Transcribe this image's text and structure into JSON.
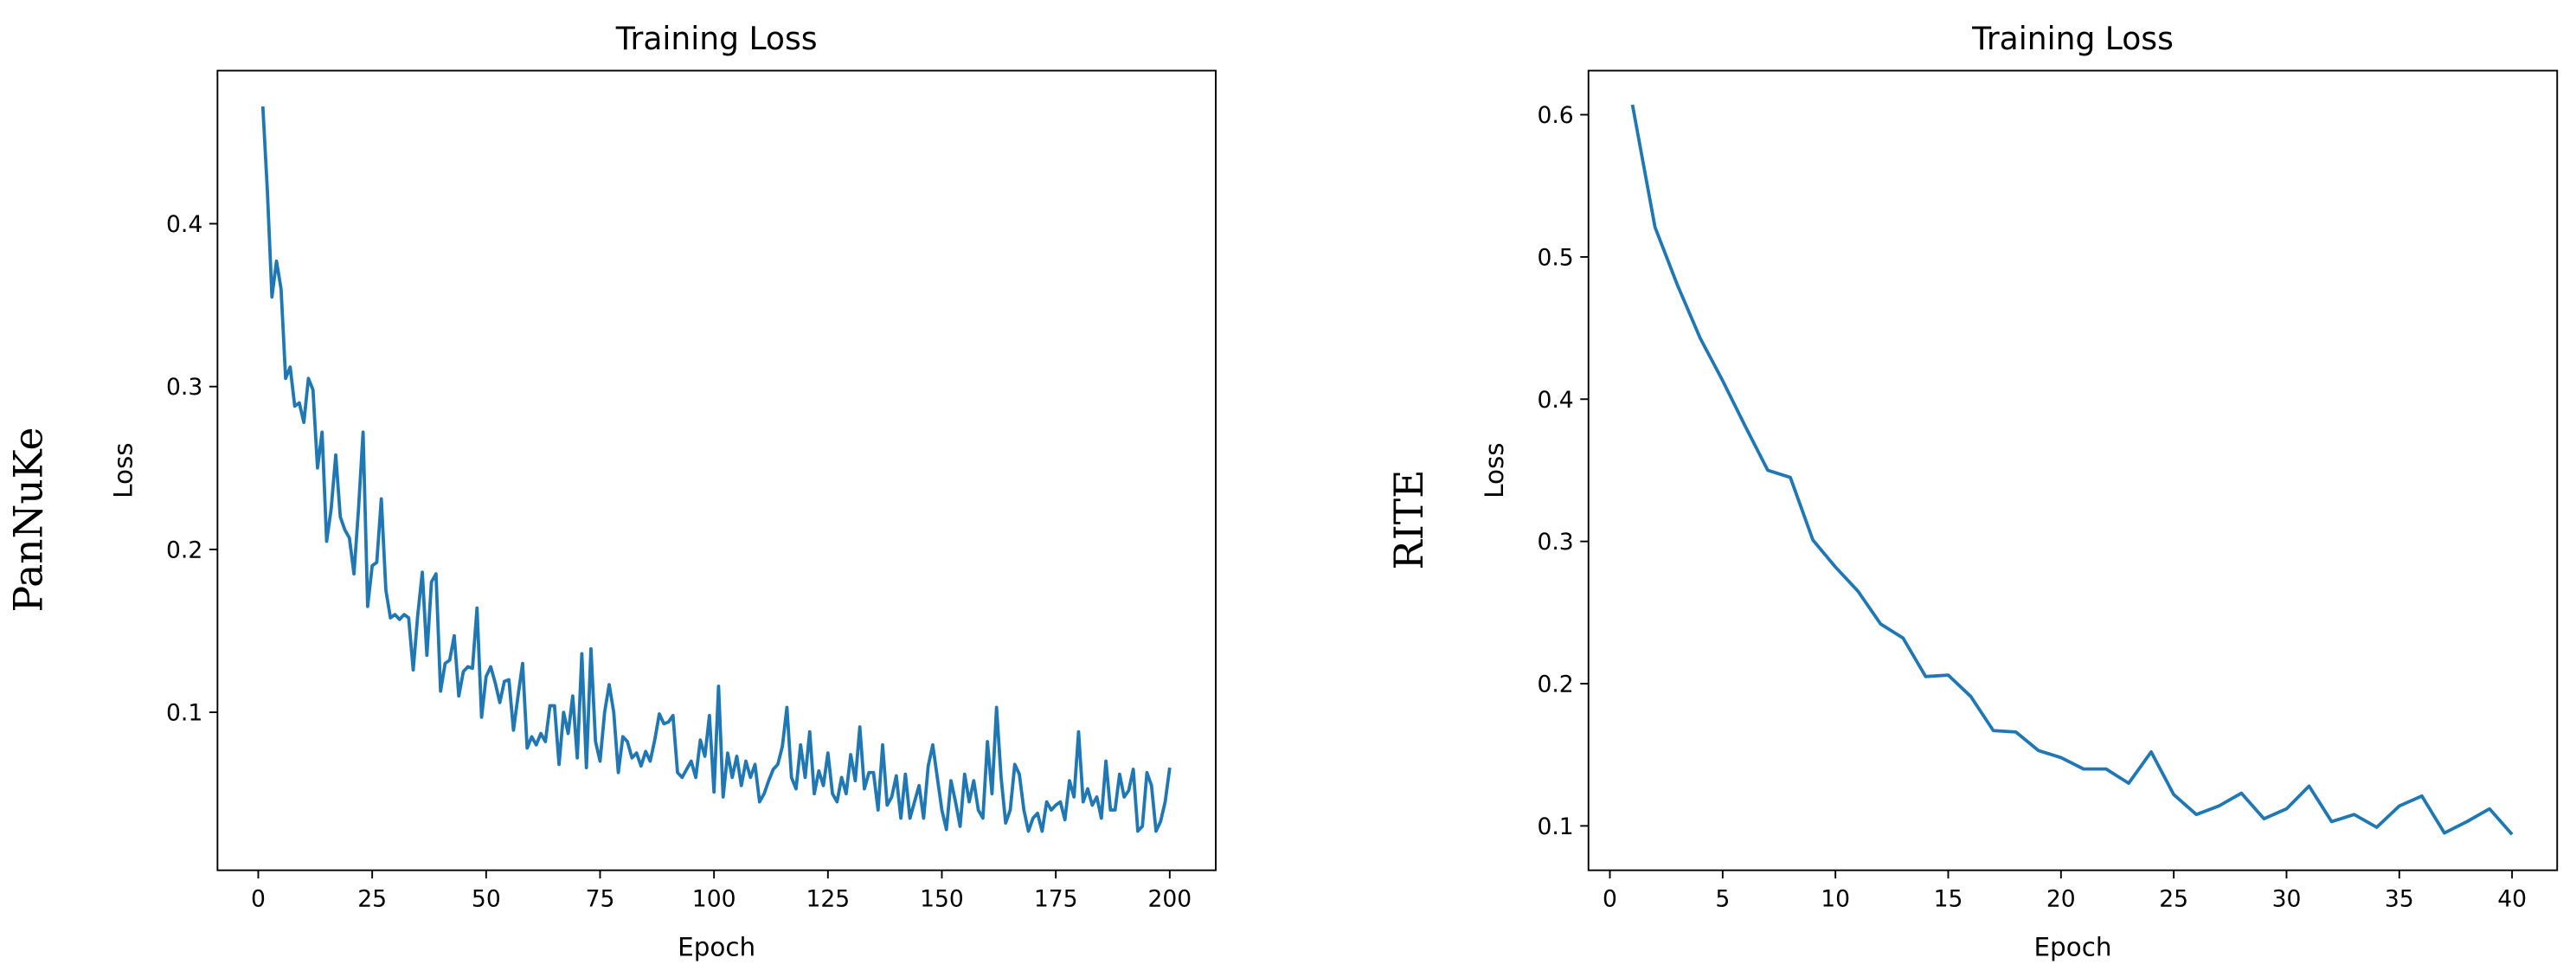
{
  "chart_data": [
    {
      "type": "line",
      "side_label": "PanNuKe",
      "title": "Training Loss",
      "x_label": "Epoch",
      "y_label": "Loss",
      "xlim": [
        -8.95,
        210.1
      ],
      "ylim": [
        0.003,
        0.494
      ],
      "xticks": [
        0,
        25,
        50,
        75,
        100,
        125,
        150,
        175,
        200
      ],
      "yticks": [
        0.1,
        0.2,
        0.3,
        0.4
      ],
      "series": [
        {
          "color": "#1f77b4",
          "x": [
            1,
            2,
            3,
            4,
            5,
            6,
            7,
            8,
            9,
            10,
            11,
            12,
            13,
            14,
            15,
            16,
            17,
            18,
            19,
            20,
            21,
            22,
            23,
            24,
            25,
            26,
            27,
            28,
            29,
            30,
            31,
            32,
            33,
            34,
            35,
            36,
            37,
            38,
            39,
            40,
            41,
            42,
            43,
            44,
            45,
            46,
            47,
            48,
            49,
            50,
            51,
            52,
            53,
            54,
            55,
            56,
            57,
            58,
            59,
            60,
            61,
            62,
            63,
            64,
            65,
            66,
            67,
            68,
            69,
            70,
            71,
            72,
            73,
            74,
            75,
            76,
            77,
            78,
            79,
            80,
            81,
            82,
            83,
            84,
            85,
            86,
            87,
            88,
            89,
            90,
            91,
            92,
            93,
            94,
            95,
            96,
            97,
            98,
            99,
            100,
            101,
            102,
            103,
            104,
            105,
            106,
            107,
            108,
            109,
            110,
            111,
            112,
            113,
            114,
            115,
            116,
            117,
            118,
            119,
            120,
            121,
            122,
            123,
            124,
            125,
            126,
            127,
            128,
            129,
            130,
            131,
            132,
            133,
            134,
            135,
            136,
            137,
            138,
            139,
            140,
            141,
            142,
            143,
            144,
            145,
            146,
            147,
            148,
            149,
            150,
            151,
            152,
            153,
            154,
            155,
            156,
            157,
            158,
            159,
            160,
            161,
            162,
            163,
            164,
            165,
            166,
            167,
            168,
            169,
            170,
            171,
            172,
            173,
            174,
            175,
            176,
            177,
            178,
            179,
            180,
            181,
            182,
            183,
            184,
            185,
            186,
            187,
            188,
            189,
            190,
            191,
            192,
            193,
            194,
            195,
            196,
            197,
            198,
            199,
            200
          ],
          "values": [
            0.472,
            0.42,
            0.355,
            0.377,
            0.36,
            0.305,
            0.312,
            0.288,
            0.29,
            0.278,
            0.305,
            0.298,
            0.25,
            0.272,
            0.205,
            0.225,
            0.258,
            0.22,
            0.212,
            0.207,
            0.185,
            0.225,
            0.272,
            0.165,
            0.19,
            0.192,
            0.231,
            0.175,
            0.158,
            0.16,
            0.157,
            0.16,
            0.158,
            0.126,
            0.16,
            0.186,
            0.135,
            0.18,
            0.185,
            0.113,
            0.13,
            0.132,
            0.147,
            0.11,
            0.125,
            0.128,
            0.127,
            0.164,
            0.097,
            0.122,
            0.128,
            0.118,
            0.106,
            0.119,
            0.12,
            0.089,
            0.11,
            0.13,
            0.078,
            0.085,
            0.08,
            0.087,
            0.082,
            0.104,
            0.104,
            0.068,
            0.1,
            0.087,
            0.11,
            0.072,
            0.136,
            0.066,
            0.139,
            0.082,
            0.07,
            0.1,
            0.117,
            0.1,
            0.063,
            0.085,
            0.082,
            0.072,
            0.075,
            0.067,
            0.076,
            0.07,
            0.083,
            0.099,
            0.093,
            0.094,
            0.098,
            0.063,
            0.06,
            0.065,
            0.07,
            0.06,
            0.083,
            0.073,
            0.098,
            0.051,
            0.116,
            0.048,
            0.075,
            0.06,
            0.073,
            0.055,
            0.07,
            0.06,
            0.068,
            0.045,
            0.05,
            0.058,
            0.065,
            0.068,
            0.079,
            0.103,
            0.06,
            0.053,
            0.08,
            0.06,
            0.088,
            0.05,
            0.064,
            0.055,
            0.075,
            0.05,
            0.045,
            0.06,
            0.05,
            0.074,
            0.058,
            0.091,
            0.053,
            0.063,
            0.063,
            0.04,
            0.08,
            0.043,
            0.048,
            0.061,
            0.035,
            0.062,
            0.035,
            0.045,
            0.055,
            0.035,
            0.067,
            0.08,
            0.06,
            0.04,
            0.028,
            0.058,
            0.045,
            0.03,
            0.062,
            0.045,
            0.058,
            0.04,
            0.035,
            0.082,
            0.05,
            0.103,
            0.06,
            0.032,
            0.04,
            0.068,
            0.062,
            0.04,
            0.027,
            0.035,
            0.038,
            0.027,
            0.045,
            0.04,
            0.043,
            0.045,
            0.034,
            0.058,
            0.048,
            0.088,
            0.045,
            0.053,
            0.043,
            0.048,
            0.035,
            0.07,
            0.04,
            0.04,
            0.062,
            0.048,
            0.052,
            0.065,
            0.027,
            0.03,
            0.063,
            0.055,
            0.027,
            0.033,
            0.045,
            0.066
          ]
        }
      ]
    },
    {
      "type": "line",
      "side_label": "RITE",
      "title": "Training Loss",
      "x_label": "Epoch",
      "y_label": "Loss",
      "xlim": [
        -0.95,
        42
      ],
      "ylim": [
        0.0688,
        0.631
      ],
      "xticks": [
        0,
        5,
        10,
        15,
        20,
        25,
        30,
        35,
        40
      ],
      "yticks": [
        0.1,
        0.2,
        0.3,
        0.4,
        0.5,
        0.6
      ],
      "series": [
        {
          "color": "#1f77b4",
          "x": [
            1,
            2,
            3,
            4,
            5,
            6,
            7,
            8,
            9,
            10,
            11,
            12,
            13,
            14,
            15,
            16,
            17,
            18,
            19,
            20,
            21,
            22,
            23,
            24,
            25,
            26,
            27,
            28,
            29,
            30,
            31,
            32,
            33,
            34,
            35,
            36,
            37,
            38,
            39,
            40
          ],
          "values": [
            0.607,
            0.521,
            0.48,
            0.443,
            0.413,
            0.381,
            0.35,
            0.345,
            0.301,
            0.282,
            0.265,
            0.242,
            0.232,
            0.205,
            0.206,
            0.191,
            0.167,
            0.166,
            0.153,
            0.148,
            0.14,
            0.14,
            0.13,
            0.152,
            0.122,
            0.108,
            0.114,
            0.123,
            0.105,
            0.112,
            0.128,
            0.103,
            0.108,
            0.099,
            0.114,
            0.121,
            0.095,
            0.103,
            0.112,
            0.094
          ]
        }
      ]
    }
  ]
}
